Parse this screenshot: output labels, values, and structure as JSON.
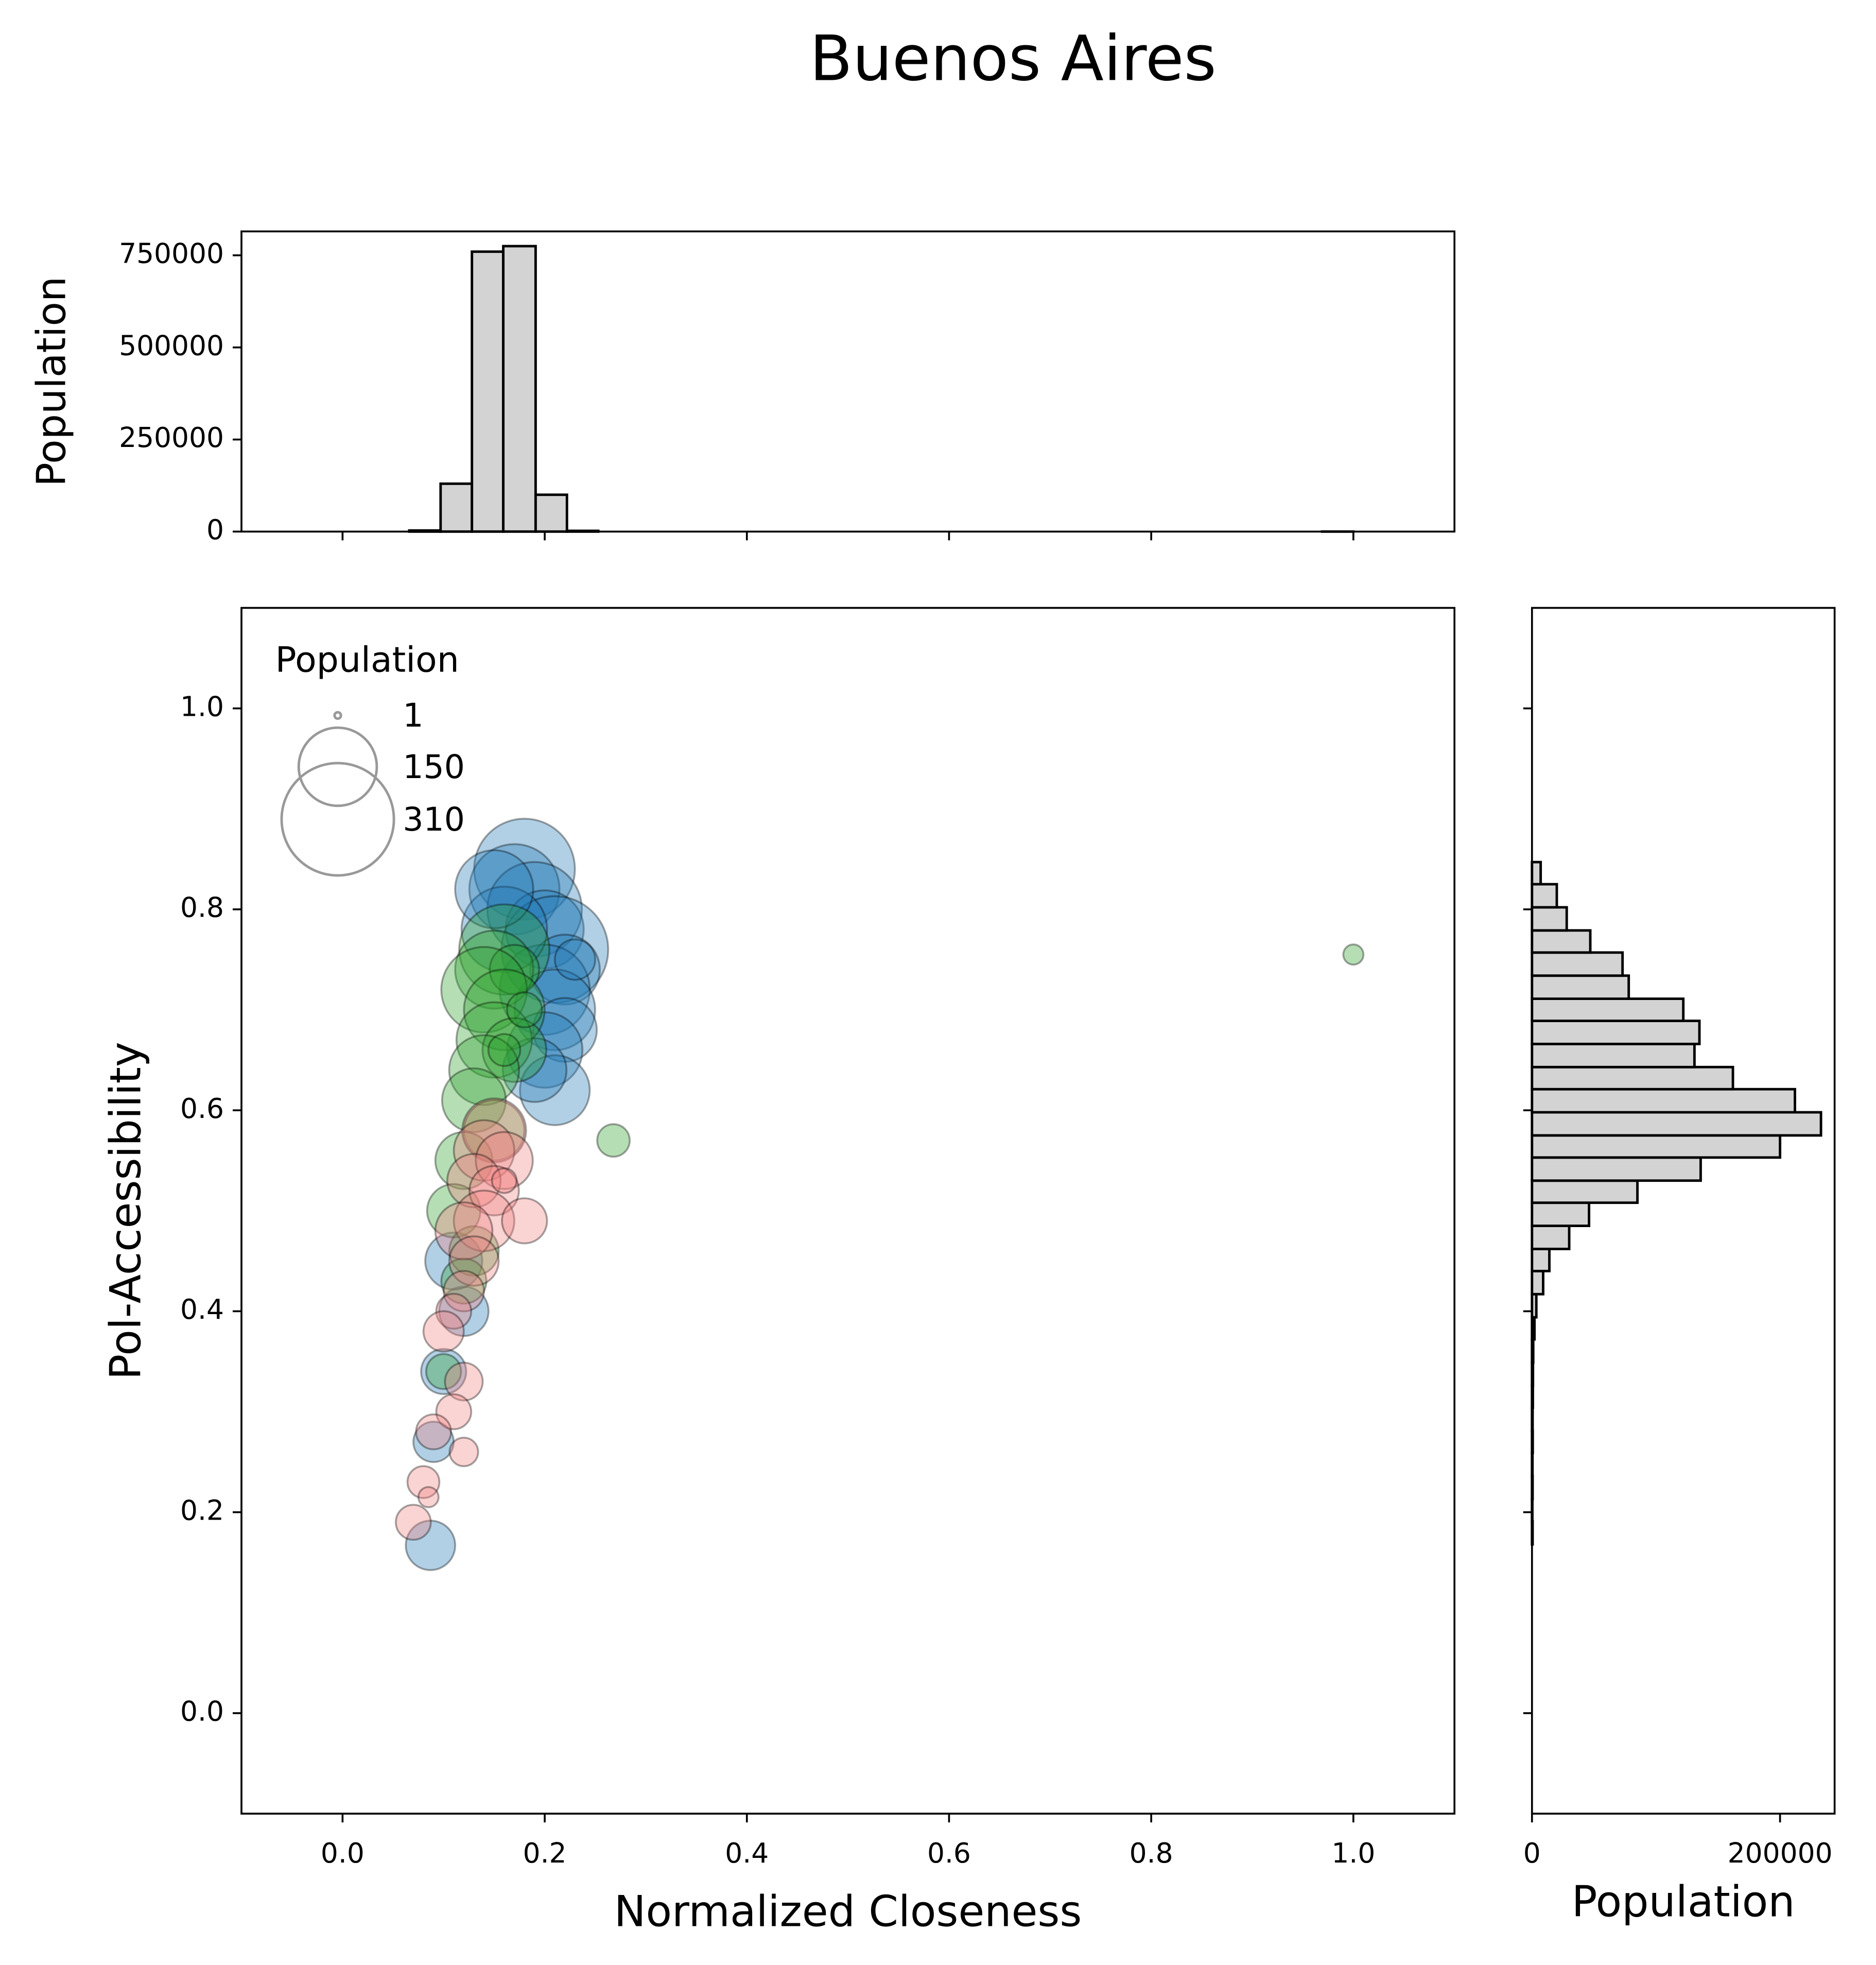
{
  "chart_data": [
    {
      "type": "scatter",
      "title": "Buenos Aires",
      "xlabel": "Normalized Closeness",
      "ylabel": "Pol-Accessibility",
      "xlim": [
        -0.1,
        1.1
      ],
      "ylim": [
        -0.1,
        1.1
      ],
      "xticks": [
        {
          "value": 0,
          "label": "0.0"
        },
        0.2,
        0.4,
        0.6,
        0.8,
        {
          "value": 1,
          "label": "1.0"
        }
      ],
      "yticks": [
        {
          "value": 0,
          "label": "0.0"
        },
        0.2,
        0.4,
        0.6,
        0.8,
        {
          "value": 1,
          "label": "1.0"
        }
      ],
      "size_legend": {
        "title": "Population",
        "sizes": [
          1,
          150,
          310
        ],
        "location": "upper left"
      },
      "series": [
        {
          "color": "#1f77b4",
          "x": [
            0.18,
            0.17,
            0.19,
            0.2,
            0.21,
            0.22,
            0.2,
            0.21,
            0.22,
            0.2,
            0.21,
            0.16,
            0.15,
            0.19,
            0.12,
            0.1,
            0.09,
            0.087,
            0.11,
            0.23
          ],
          "values": [
            0.84,
            0.82,
            0.8,
            0.78,
            0.76,
            0.74,
            0.72,
            0.7,
            0.68,
            0.66,
            0.62,
            0.78,
            0.82,
            0.64,
            0.4,
            0.34,
            0.27,
            0.167,
            0.45,
            0.75
          ],
          "sizes": [
            250,
            200,
            220,
            150,
            280,
            120,
            200,
            160,
            100,
            140,
            120,
            180,
            150,
            100,
            60,
            50,
            40,
            60,
            80,
            40
          ]
        },
        {
          "color": "#2ca02c",
          "x": [
            0.16,
            0.15,
            0.17,
            0.14,
            0.16,
            0.15,
            0.17,
            0.14,
            0.13,
            0.15,
            0.12,
            0.11,
            0.13,
            0.12,
            0.18,
            0.16,
            0.1,
            0.268,
            1.0
          ],
          "values": [
            0.76,
            0.74,
            0.74,
            0.72,
            0.7,
            0.67,
            0.66,
            0.64,
            0.61,
            0.58,
            0.55,
            0.5,
            0.46,
            0.43,
            0.7,
            0.66,
            0.34,
            0.57,
            0.755
          ],
          "sizes": [
            200,
            150,
            60,
            180,
            160,
            140,
            100,
            120,
            100,
            90,
            80,
            70,
            60,
            50,
            30,
            25,
            30,
            26,
            10
          ]
        },
        {
          "color": "#f08080",
          "x": [
            0.15,
            0.14,
            0.16,
            0.13,
            0.15,
            0.14,
            0.12,
            0.18,
            0.13,
            0.12,
            0.11,
            0.1,
            0.12,
            0.11,
            0.12,
            0.09,
            0.08,
            0.07,
            0.085,
            0.16
          ],
          "values": [
            0.58,
            0.56,
            0.55,
            0.53,
            0.52,
            0.49,
            0.48,
            0.49,
            0.45,
            0.42,
            0.4,
            0.38,
            0.33,
            0.3,
            0.26,
            0.28,
            0.23,
            0.19,
            0.215,
            0.53
          ],
          "sizes": [
            100,
            90,
            80,
            70,
            60,
            90,
            80,
            50,
            60,
            40,
            30,
            40,
            35,
            30,
            20,
            30,
            25,
            30,
            10,
            15
          ]
        }
      ]
    },
    {
      "type": "histogram",
      "orientation": "vertical",
      "ylabel": "Population",
      "color": "#d3d3d3",
      "xlim": [
        -0.1,
        1.1
      ],
      "ylim": [
        0,
        815000
      ],
      "yticks": [
        0,
        250000,
        500000,
        750000
      ],
      "bins": [
        0.066,
        0.097,
        0.128,
        0.159,
        0.191,
        0.222,
        0.253,
        0.284,
        0.315,
        0.346,
        0.377,
        0.408,
        0.44,
        0.471,
        0.502,
        0.533,
        0.564,
        0.595,
        0.626,
        0.657,
        0.689,
        0.72,
        0.751,
        0.782,
        0.813,
        0.844,
        0.875,
        0.906,
        0.938,
        0.969,
        1.0
      ],
      "values": [
        3000,
        130000,
        760000,
        775000,
        100000,
        2000,
        0,
        0,
        0,
        0,
        0,
        0,
        0,
        0,
        0,
        0,
        0,
        0,
        0,
        0,
        0,
        0,
        0,
        0,
        0,
        0,
        0,
        0,
        0,
        50
      ]
    },
    {
      "type": "histogram",
      "orientation": "horizontal",
      "xlabel": "Population",
      "color": "#d3d3d3",
      "xlim": [
        0,
        244000
      ],
      "ylim": [
        -0.1,
        1.1
      ],
      "xticks": [
        0,
        200000
      ],
      "bins": [
        0.168,
        0.191,
        0.213,
        0.236,
        0.259,
        0.281,
        0.304,
        0.326,
        0.349,
        0.372,
        0.394,
        0.417,
        0.44,
        0.462,
        0.485,
        0.508,
        0.53,
        0.553,
        0.575,
        0.598,
        0.621,
        0.643,
        0.666,
        0.689,
        0.711,
        0.734,
        0.757,
        0.779,
        0.802,
        0.825,
        0.847
      ],
      "values": [
        500,
        300,
        500,
        400,
        600,
        500,
        700,
        800,
        1000,
        2000,
        3500,
        9000,
        14000,
        30000,
        46000,
        85000,
        136000,
        200000,
        233000,
        212000,
        162000,
        131000,
        135000,
        122000,
        78000,
        73000,
        47000,
        28000,
        20000,
        7000
      ]
    }
  ]
}
